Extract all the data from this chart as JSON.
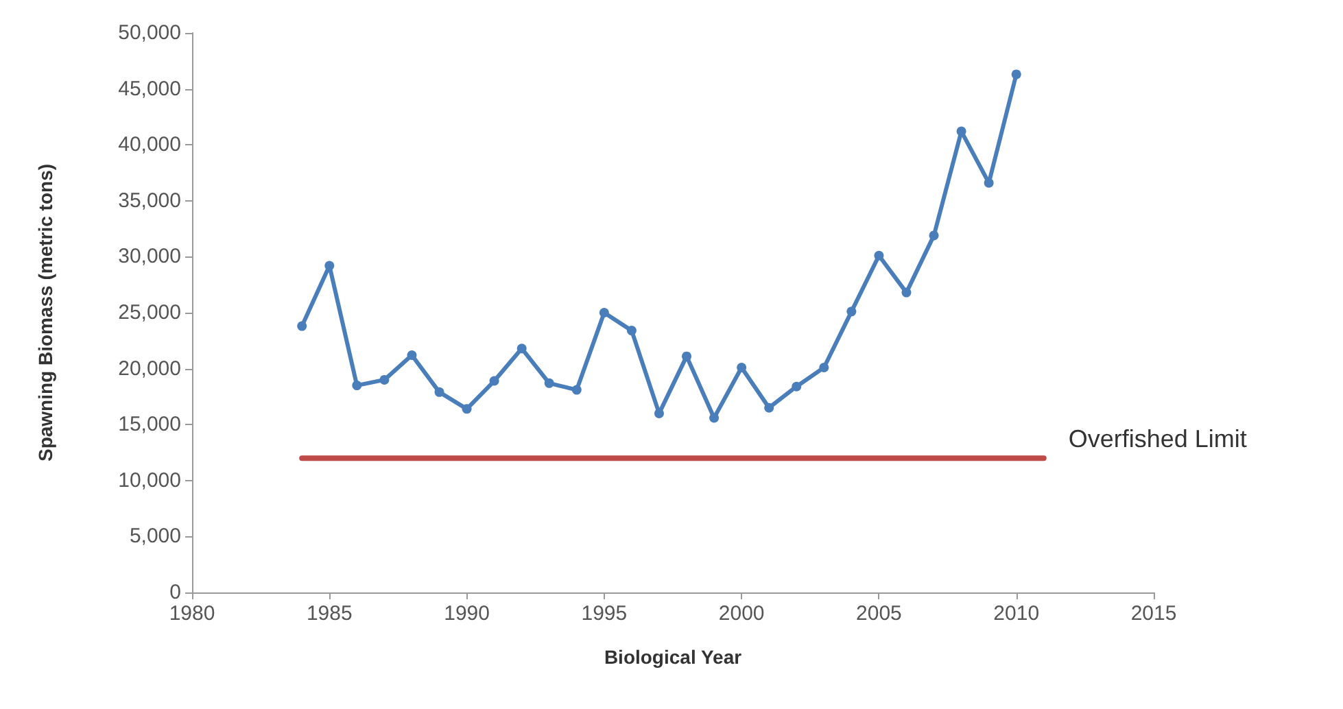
{
  "chart_data": {
    "type": "line",
    "xlabel": "Biological Year",
    "ylabel": "Spawning Biomass (metric tons)",
    "xlim": [
      1980,
      2015
    ],
    "xticks": [
      1980,
      1985,
      1990,
      1995,
      2000,
      2005,
      2010,
      2015
    ],
    "ylim": [
      0,
      50000
    ],
    "yticks": [
      0,
      {
        "value": 5000,
        "label": "5,000"
      },
      {
        "value": 10000,
        "label": "10,000"
      },
      {
        "value": 15000,
        "label": "15,000"
      },
      {
        "value": 20000,
        "label": "20,000"
      },
      {
        "value": 25000,
        "label": "25,000"
      },
      {
        "value": 30000,
        "label": "30,000"
      },
      {
        "value": 35000,
        "label": "35,000"
      },
      {
        "value": 40000,
        "label": "40,000"
      },
      {
        "value": 45000,
        "label": "45,000"
      },
      {
        "value": 50000,
        "label": "50,000"
      }
    ],
    "grid": false,
    "legend": false,
    "marker": "circle",
    "line_style": "solid",
    "series": [
      {
        "color": "#4a7ebb",
        "x": [
          1984,
          1985,
          1986,
          1987,
          1988,
          1989,
          1990,
          1991,
          1992,
          1993,
          1994,
          1995,
          1996,
          1997,
          1998,
          1999,
          2000,
          2001,
          2002,
          2003,
          2004,
          2005,
          2006,
          2007,
          2008,
          2009,
          2010
        ],
        "values": [
          23800,
          29200,
          18500,
          19000,
          21200,
          17900,
          16400,
          18900,
          21800,
          18700,
          18100,
          25000,
          23400,
          16000,
          21100,
          15600,
          20100,
          16500,
          18400,
          20100,
          25100,
          30100,
          26800,
          31900,
          41200,
          36600,
          46300
        ]
      },
      {
        "name": "Overfished Limit",
        "color": "#be4b48",
        "x": [
          1984,
          2011
        ],
        "values": [
          12000,
          12000
        ],
        "marker": "none"
      }
    ]
  }
}
